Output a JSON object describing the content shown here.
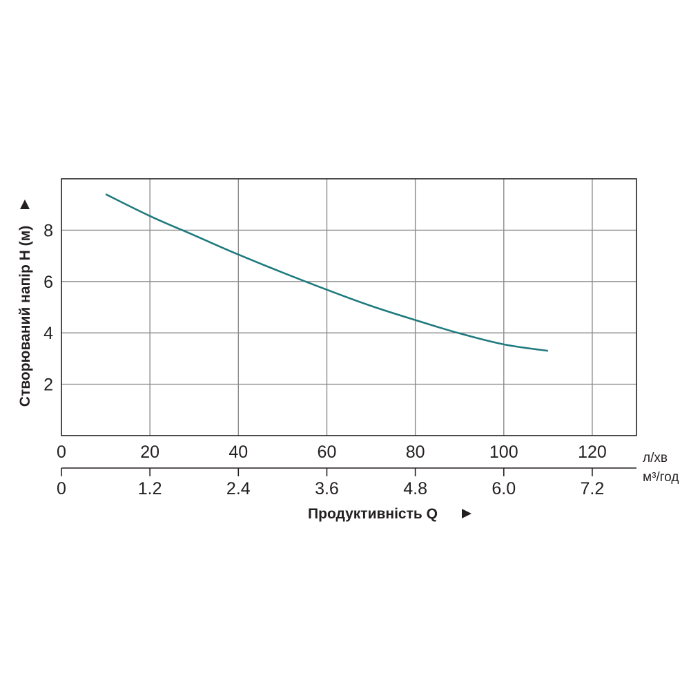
{
  "chart_data": {
    "type": "line",
    "title": "",
    "ylabel": "Створюваний напір H (м)",
    "xlabel": "Продуктивність Q",
    "x_unit_primary": "л/хв",
    "x_unit_secondary": "м³/год",
    "xlim": [
      0,
      130
    ],
    "ylim": [
      0,
      10
    ],
    "x_ticks": [
      0,
      20,
      40,
      60,
      80,
      100,
      120
    ],
    "x_ticks_secondary": [
      "0",
      "1.2",
      "2.4",
      "3.6",
      "4.8",
      "6.0",
      "7.2"
    ],
    "y_ticks": [
      2,
      4,
      6,
      8
    ],
    "grid": true,
    "line_color": "#1f7a7e",
    "series": [
      {
        "x": [
          10,
          20,
          30,
          40,
          50,
          60,
          70,
          80,
          90,
          100,
          110
        ],
        "y": [
          9.4,
          8.55,
          7.8,
          7.05,
          6.35,
          5.68,
          5.05,
          4.5,
          3.98,
          3.55,
          3.3
        ]
      }
    ]
  }
}
